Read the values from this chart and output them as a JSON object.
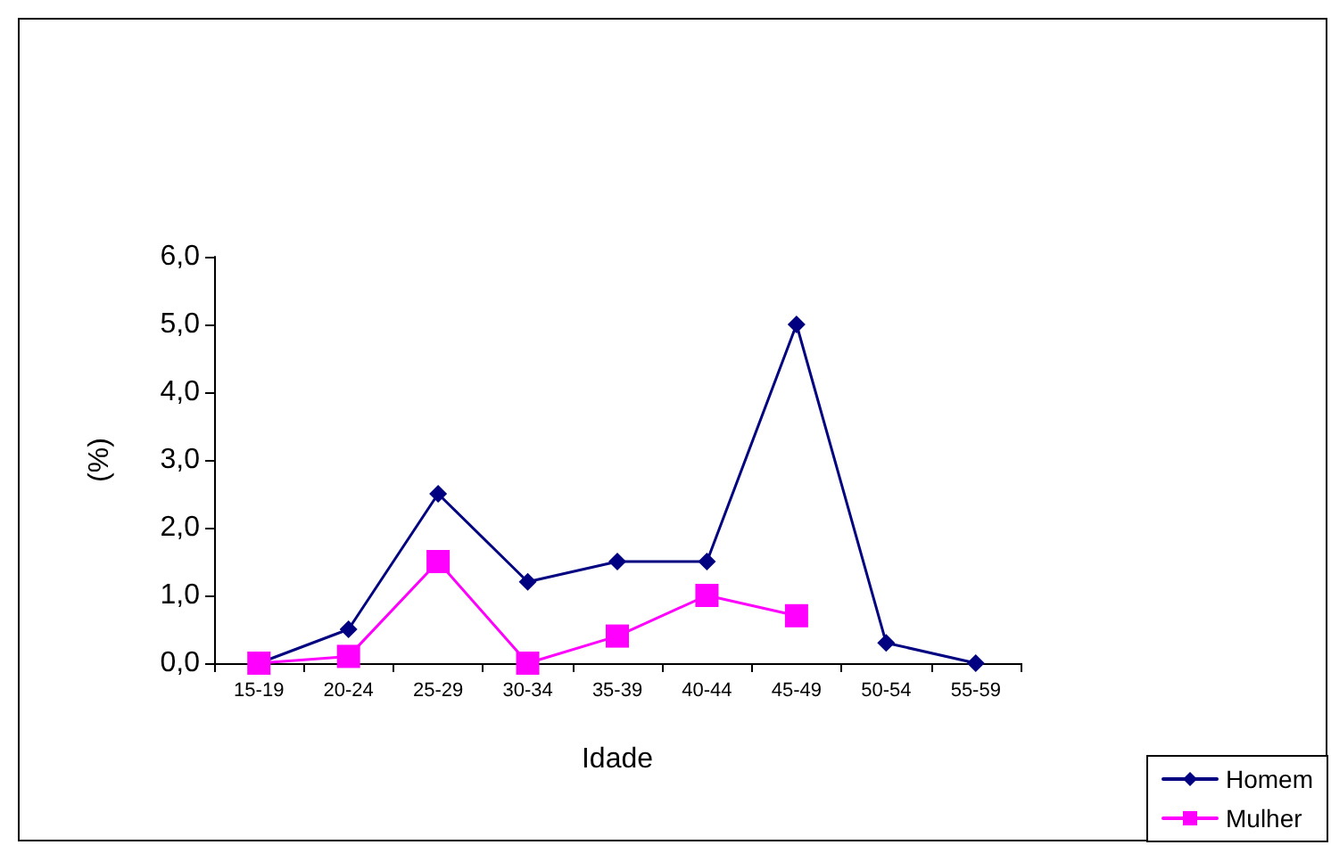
{
  "chart_data": {
    "type": "line",
    "xlabel": "Idade",
    "ylabel": "(%)",
    "categories": [
      "15-19",
      "20-24",
      "25-29",
      "30-34",
      "35-39",
      "40-44",
      "45-49",
      "50-54",
      "55-59"
    ],
    "series": [
      {
        "name": "Homem",
        "color": "#000080",
        "marker": "diamond",
        "values": [
          0,
          0.5,
          2.5,
          1.2,
          1.5,
          1.5,
          5.0,
          0.3,
          0
        ]
      },
      {
        "name": "Mulher",
        "color": "#ff00ff",
        "marker": "square",
        "values": [
          0,
          0.1,
          1.5,
          0,
          0.4,
          1.0,
          0.7,
          null,
          null
        ]
      }
    ],
    "ylim": [
      0,
      6
    ],
    "yticks": [
      {
        "value": 0,
        "label": "0,0"
      },
      {
        "value": 1,
        "label": "1,0"
      },
      {
        "value": 2,
        "label": "2,0"
      },
      {
        "value": 3,
        "label": "3,0"
      },
      {
        "value": 4,
        "label": "4,0"
      },
      {
        "value": 5,
        "label": "5,0"
      },
      {
        "value": 6,
        "label": "6,0"
      }
    ],
    "grid": false,
    "legend": "bottom right",
    "line_style": "solid"
  }
}
